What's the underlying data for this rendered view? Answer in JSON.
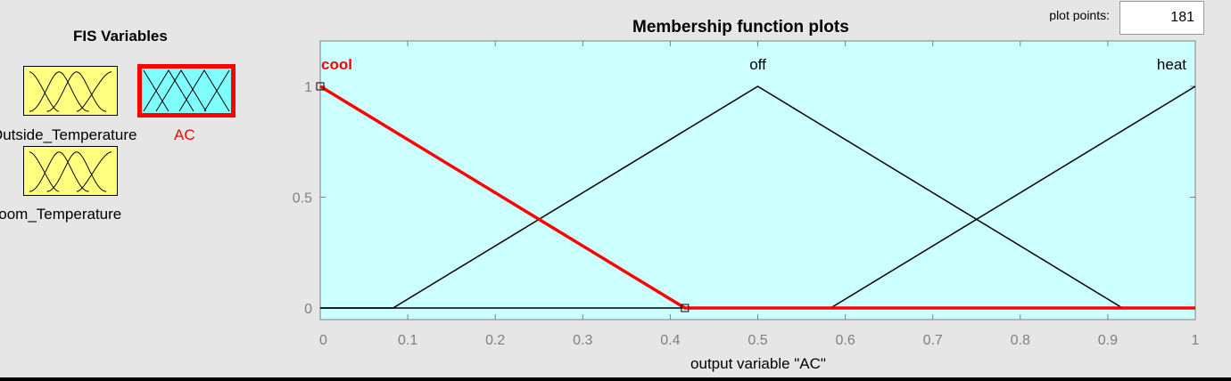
{
  "fis_panel": {
    "title": "FIS Variables",
    "variables": [
      {
        "label": "Outside_Temperature",
        "kind": "input",
        "color": "#ffff80"
      },
      {
        "label": "AC",
        "kind": "output",
        "color": "#80ffff",
        "selected": true
      },
      {
        "label": "Room_Temperature",
        "kind": "input",
        "color": "#ffff80"
      }
    ]
  },
  "plot_points": {
    "label": "plot points:",
    "value": "181"
  },
  "plot": {
    "title": "Membership function plots",
    "xlabel": "output variable \"AC\"",
    "xlim": [
      0,
      1
    ],
    "ylim": [
      0,
      1
    ],
    "x_ticks": [
      "0",
      "0.1",
      "0.2",
      "0.3",
      "0.4",
      "0.5",
      "0.6",
      "0.7",
      "0.8",
      "0.9",
      "1"
    ],
    "y_ticks": [
      "0",
      "0.5",
      "1"
    ],
    "selected_color": "#ff0000",
    "background_color": "#ccffff",
    "membership_functions": [
      {
        "label": "cool",
        "selected": true,
        "points": [
          [
            0,
            1
          ],
          [
            0.4167,
            0
          ],
          [
            1,
            0
          ]
        ]
      },
      {
        "label": "off",
        "selected": false,
        "points": [
          [
            0,
            0
          ],
          [
            0.0833,
            0
          ],
          [
            0.5,
            1
          ],
          [
            0.9167,
            0
          ],
          [
            1,
            0
          ]
        ]
      },
      {
        "label": "heat",
        "selected": false,
        "points": [
          [
            0,
            0
          ],
          [
            0.5833,
            0
          ],
          [
            1,
            1
          ]
        ]
      }
    ]
  }
}
